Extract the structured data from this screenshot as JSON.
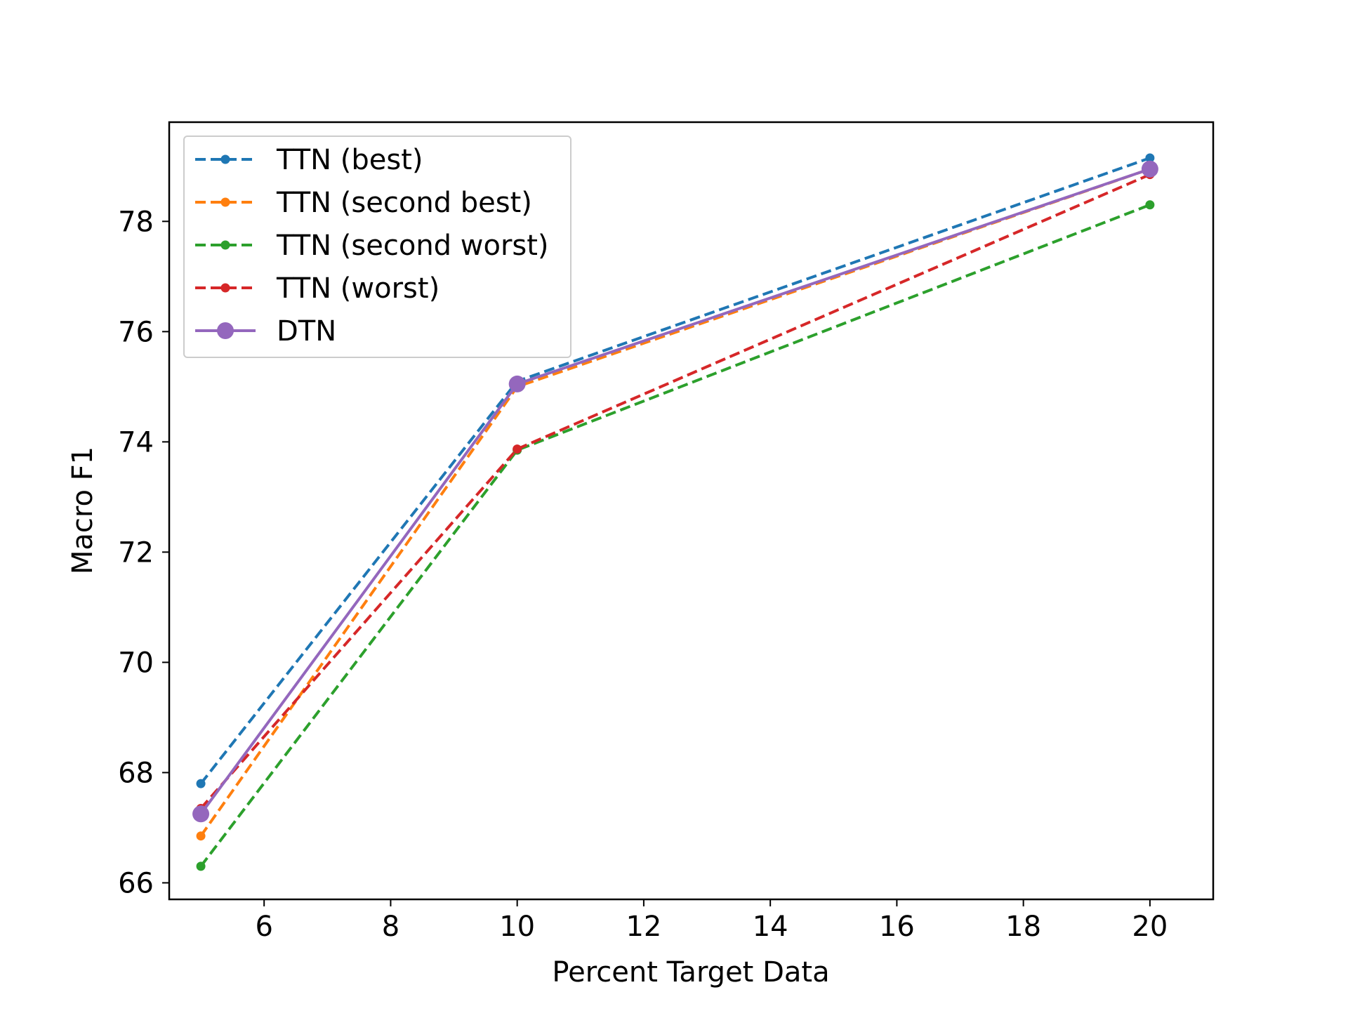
{
  "chart_data": {
    "type": "line",
    "xlabel": "Percent Target Data",
    "ylabel": "Macro F1",
    "xlim": [
      4.5,
      21.0
    ],
    "ylim": [
      65.7,
      79.8
    ],
    "xticks": [
      6,
      8,
      10,
      12,
      14,
      16,
      18,
      20
    ],
    "yticks": [
      66,
      68,
      70,
      72,
      74,
      76,
      78
    ],
    "x": [
      5,
      10,
      20
    ],
    "legend_position": "upper-left",
    "grid": false,
    "series": [
      {
        "name": "TTN (best)",
        "values": [
          67.8,
          75.1,
          79.15
        ],
        "color": "#1f77b4",
        "style": "dashed",
        "marker": "small-dot"
      },
      {
        "name": "TTN (second best)",
        "values": [
          66.85,
          75.0,
          78.95
        ],
        "color": "#ff7f0e",
        "style": "dashed",
        "marker": "small-dot"
      },
      {
        "name": "TTN (second worst)",
        "values": [
          66.3,
          73.85,
          78.3
        ],
        "color": "#2ca02c",
        "style": "dashed",
        "marker": "small-dot"
      },
      {
        "name": "TTN (worst)",
        "values": [
          67.35,
          73.87,
          78.85
        ],
        "color": "#d62728",
        "style": "dashed",
        "marker": "small-dot"
      },
      {
        "name": "DTN",
        "values": [
          67.25,
          75.05,
          78.95
        ],
        "color": "#9467bd",
        "style": "solid",
        "marker": "large-dot"
      }
    ]
  }
}
